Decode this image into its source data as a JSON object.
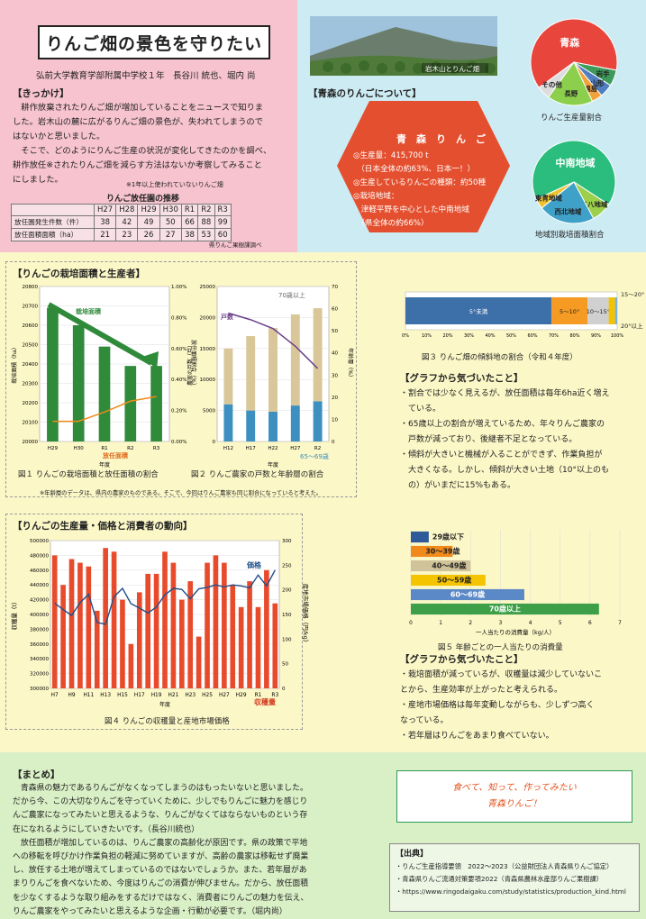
{
  "header": {
    "title": "りんご畑の景色を守りたい",
    "authors": "弘前大学教育学部附属中学校１年　長谷川 統也、堀内 尚"
  },
  "kikkake": {
    "heading": "【きっかけ】",
    "lines": [
      "　耕作放棄されたりんご畑が増加していることをニュースで知りま",
      "した。岩木山の麓に広がるりんご畑の景色が、失われてしまうので",
      "はないかと思いました。",
      "　そこで、どのようにりんご生産の状況が変化してきたのかを調べ、",
      "耕作放任※されたりんご畑を減らす方法はないか考察してみること",
      "にしました。"
    ],
    "footnote": "※1年以上使われていないりんご畑"
  },
  "abandon_table": {
    "caption": "りんご放任園の推移",
    "columns": [
      "H27",
      "H28",
      "H29",
      "H30",
      "R1",
      "R2",
      "R3"
    ],
    "rows": [
      {
        "label": "放任園発生件数（件）",
        "values": [
          "38",
          "42",
          "49",
          "50",
          "66",
          "88",
          "99"
        ]
      },
      {
        "label": "放任面積面積（ha）",
        "values": [
          "21",
          "23",
          "26",
          "27",
          "38",
          "53",
          "60"
        ]
      }
    ],
    "source": "県りんご果樹課調べ"
  },
  "aomori": {
    "photo_caption": "岩木山とりんご畑",
    "heading": "【青森のりんごについて】",
    "box_title": "青　森　り　ん　ご",
    "items": [
      "◎生産量：415,700 t",
      "　（日本全体の約63%、日本一！）",
      "◎生産しているりんごの種類：約50種",
      "◎栽培地域：",
      "　津軽平野を中心とした中南地域",
      "　（県全体の約66%）"
    ]
  },
  "pie1": {
    "caption": "りんご生産量割合",
    "slices": [
      {
        "label": "青森",
        "value": 63,
        "color": "#e8453c"
      },
      {
        "label": "岩手",
        "value": 6,
        "color": "#3d9a5a"
      },
      {
        "label": "山形",
        "value": 5,
        "color": "#4f7ec2"
      },
      {
        "label": "福島",
        "value": 4,
        "color": "#f2a23c"
      },
      {
        "label": "長野",
        "value": 17,
        "color": "#8ccf4d"
      },
      {
        "label": "その他",
        "value": 5,
        "color": "#dddddd"
      }
    ],
    "colors": {
      "aomori": "#e8453c",
      "nagano": "#8ccf4d",
      "other": "#dddddd"
    }
  },
  "pie2": {
    "caption": "地域別栽培面積割合",
    "slices": [
      {
        "label": "中南地域",
        "value": 66,
        "color": "#2bbd7e"
      },
      {
        "label": "三八地域",
        "value": 8,
        "color": "#9ccf4a"
      },
      {
        "label": "西北地域",
        "value": 22,
        "color": "#3fa0c8"
      },
      {
        "label": "東青地域",
        "value": 4,
        "color": "#f0c22e"
      }
    ]
  },
  "fig1": {
    "section": "【りんごの栽培面積と生産者】",
    "caption": "図１ りんごの栽培面積と放任面積の割合",
    "chart_data": {
      "type": "bar",
      "categories": [
        "H29",
        "H30",
        "R1",
        "R2",
        "R3"
      ],
      "series": [
        {
          "name": "栽培面積",
          "values": [
            20690,
            20600,
            20490,
            20390,
            20390
          ],
          "color": "#2f8a3a"
        },
        {
          "name": "放任面積",
          "values": [
            0.13,
            0.13,
            0.19,
            0.26,
            0.29
          ],
          "color": "#f08a1c"
        }
      ],
      "ylabel": "栽培面積（ha）",
      "y2label": "放任面積割合（%）",
      "ylim": [
        20000,
        20800
      ],
      "y2lim": [
        0,
        1.0
      ],
      "yticks": [
        "20800",
        "20700",
        "20600",
        "20500",
        "20400",
        "20300",
        "20200",
        "20100",
        "20000"
      ],
      "y2ticks": [
        "1.00%",
        "0.80%",
        "0.60%",
        "0.40%",
        "0.20%",
        "0.00%"
      ],
      "xlabel": "年度"
    }
  },
  "fig2": {
    "caption": "図２ りんご農家の戸数と年齢層の割合",
    "chart_data": {
      "type": "bar",
      "categories": [
        "H12",
        "H17",
        "H22",
        "H27",
        "R2"
      ],
      "series": [
        {
          "name": "65～69歳",
          "values": [
            6000,
            5000,
            4800,
            5800,
            6500
          ],
          "color": "#3d8fc0"
        },
        {
          "name": "70歳以上",
          "values": [
            9000,
            12000,
            13500,
            14700,
            15000
          ],
          "color": "#d9c79a"
        },
        {
          "name": "戸数",
          "values": [
            58,
            55,
            51,
            43,
            33
          ],
          "color": "#6a3f8c"
        }
      ],
      "ylabel": "農家の戸数（戸）",
      "y2label": "年齢層（%）",
      "ylim": [
        0,
        25000
      ],
      "y2lim": [
        0,
        70
      ],
      "yticks": [
        "25000",
        "20000",
        "15000",
        "10000",
        "5000",
        "0"
      ],
      "y2ticks": [
        "70",
        "60",
        "50",
        "40",
        "30",
        "20",
        "10",
        "0"
      ],
      "xlabel": "年度"
    },
    "note": "※年齢層のデータは、県内の農家のものである。そこで、今回はりんご農家も同じ割合になっていると考えた。"
  },
  "fig3": {
    "caption": "図３ りんご畑の傾斜地の割合（令和４年度）",
    "chart_data": {
      "type": "bar",
      "categories": [
        "5°未満",
        "5～10°",
        "10～15°",
        "15～20°",
        "20°以上"
      ],
      "values": [
        69,
        17,
        10,
        3,
        1
      ],
      "colors": [
        "#3d6fa8",
        "#f59a23",
        "#d0d0d0",
        "#f2c400",
        "#7ab0e0"
      ],
      "xticks": [
        "0%",
        "10%",
        "20%",
        "30%",
        "40%",
        "50%",
        "60%",
        "70%",
        "80%",
        "90%",
        "100%"
      ]
    }
  },
  "notice1": {
    "heading": "【グラフから気づいたこと】",
    "lines": [
      "・割合では少なく見えるが、放任面積は毎年6ha近く増え",
      "　ている。",
      "・65歳以上の割合が増えているため、年々りんご農家の",
      "　戸数が減っており、後継者不足となっている。",
      "・傾斜が大きいと機械が入ることができず、作業負担が",
      "　大きくなる。しかし、傾斜が大きい土地（10°以上のも",
      "　の）がいまだに15%もある。"
    ]
  },
  "fig4": {
    "section": "【りんごの生産量・価格と消費者の動向】",
    "caption": "図４ りんごの収穫量と産地市場価格",
    "chart_data": {
      "type": "bar",
      "categories": [
        "H7",
        "H8",
        "H9",
        "H10",
        "H11",
        "H12",
        "H13",
        "H14",
        "H15",
        "H16",
        "H17",
        "H18",
        "H19",
        "H20",
        "H21",
        "H22",
        "H23",
        "H24",
        "H25",
        "H26",
        "H27",
        "H28",
        "H29",
        "H30",
        "R1",
        "R2",
        "R3"
      ],
      "series": [
        {
          "name": "収穫量",
          "values": [
            480000,
            440000,
            475000,
            470000,
            465000,
            405000,
            490000,
            485000,
            420000,
            360000,
            430000,
            455000,
            455000,
            485000,
            470000,
            420000,
            445000,
            370000,
            470000,
            480000,
            470000,
            440000,
            410000,
            445000,
            410000,
            460000,
            415000
          ],
          "color": "#e84b2c"
        },
        {
          "name": "価格",
          "values": [
            173,
            160,
            148,
            174,
            191,
            134,
            130,
            186,
            203,
            172,
            163,
            153,
            165,
            190,
            203,
            201,
            182,
            202,
            205,
            210,
            206,
            210,
            208,
            204,
            230,
            208,
            240
          ],
          "color": "#1f4f8a"
        }
      ],
      "ylabel": "収穫量（t）",
      "y2label": "産地市場価格（円/kg）",
      "ylim": [
        300000,
        500000
      ],
      "y2lim": [
        0,
        300
      ],
      "yticks": [
        "500000",
        "480000",
        "460000",
        "440000",
        "420000",
        "400000",
        "380000",
        "360000",
        "340000",
        "320000",
        "300000"
      ],
      "y2ticks": [
        "300",
        "250",
        "200",
        "150",
        "100",
        "50",
        "0"
      ],
      "xticks": [
        "H7",
        "H9",
        "H11",
        "H13",
        "H15",
        "H17",
        "H19",
        "H21",
        "H23",
        "H25",
        "H27",
        "H29",
        "R1",
        "R3"
      ],
      "xlabel": "年度"
    }
  },
  "fig5": {
    "caption": "図５ 年齢ごとの一人当たりの消費量",
    "chart_data": {
      "type": "bar",
      "categories": [
        "29歳以下",
        "30～39歳",
        "40～49歳",
        "50～59歳",
        "60～69歳",
        "70歳以上"
      ],
      "values": [
        0.6,
        1.4,
        2.0,
        2.5,
        3.8,
        6.3
      ],
      "colors": [
        "#2f5a9a",
        "#f08a1c",
        "#d0c39a",
        "#f5c400",
        "#5b88c6",
        "#3da048"
      ],
      "xlim": [
        0,
        7
      ],
      "xticks": [
        "0",
        "1",
        "2",
        "3",
        "4",
        "5",
        "6",
        "7"
      ],
      "xlabel": "一人当たりの消費量（kg/人）"
    }
  },
  "notice2": {
    "heading": "【グラフから気づいたこと】",
    "lines": [
      "・栽培面積が減っているが、収穫量は減少していないこ",
      "とから、生産効率が上がったと考えられる。",
      "・産地市場価格は毎年変動しながらも、少しずつ高く",
      "なっている。",
      "・若年層はりんごをあまり食べていない。"
    ]
  },
  "matome": {
    "heading": "【まとめ】",
    "lines": [
      "　青森県の魅力であるりんごがなくなってしまうのはもったいないと思いました。",
      "だから今、この大切なりんごを守っていくために、少しでもりんごに魅力を感じり",
      "んご農家になってみたいと思えるような、りんごがなくてはならないものという存",
      "在になれるようにしていきたいです。（長谷川統也）",
      "　放任面積が増加しているのは、りんご農家の高齢化が原因です。県の政策で平地",
      "への移転を呼びかけ作業負担の軽減に努めていますが、高齢の農家は移転せず廃業",
      "し、放任する土地が増えてしまっているのではないでしょうか。また、若年層があ",
      "まりりんごを食べないため、今度はりんごの消費が伸びません。だから、放任面積",
      "を少なくするような取り組みをするだけではなく、消費者にりんごの魅力を伝え、",
      "りんご農家をやってみたいと思えるような企画・行動が必要です。（堀内尚）"
    ]
  },
  "slogan": {
    "line1": "食べて、知って、作ってみたい",
    "line2": "青森りんご！"
  },
  "sources": {
    "heading": "【出典】",
    "items": [
      "・りんご生産指導要領　2022～2023（公益財団法人青森県りんご協定）",
      "・青森県りんご流通対策要項2022（青森県農林水産部りんご果樹課）",
      "・https://www.ringodaigaku.com/study/statistics/production_kind.html"
    ]
  }
}
